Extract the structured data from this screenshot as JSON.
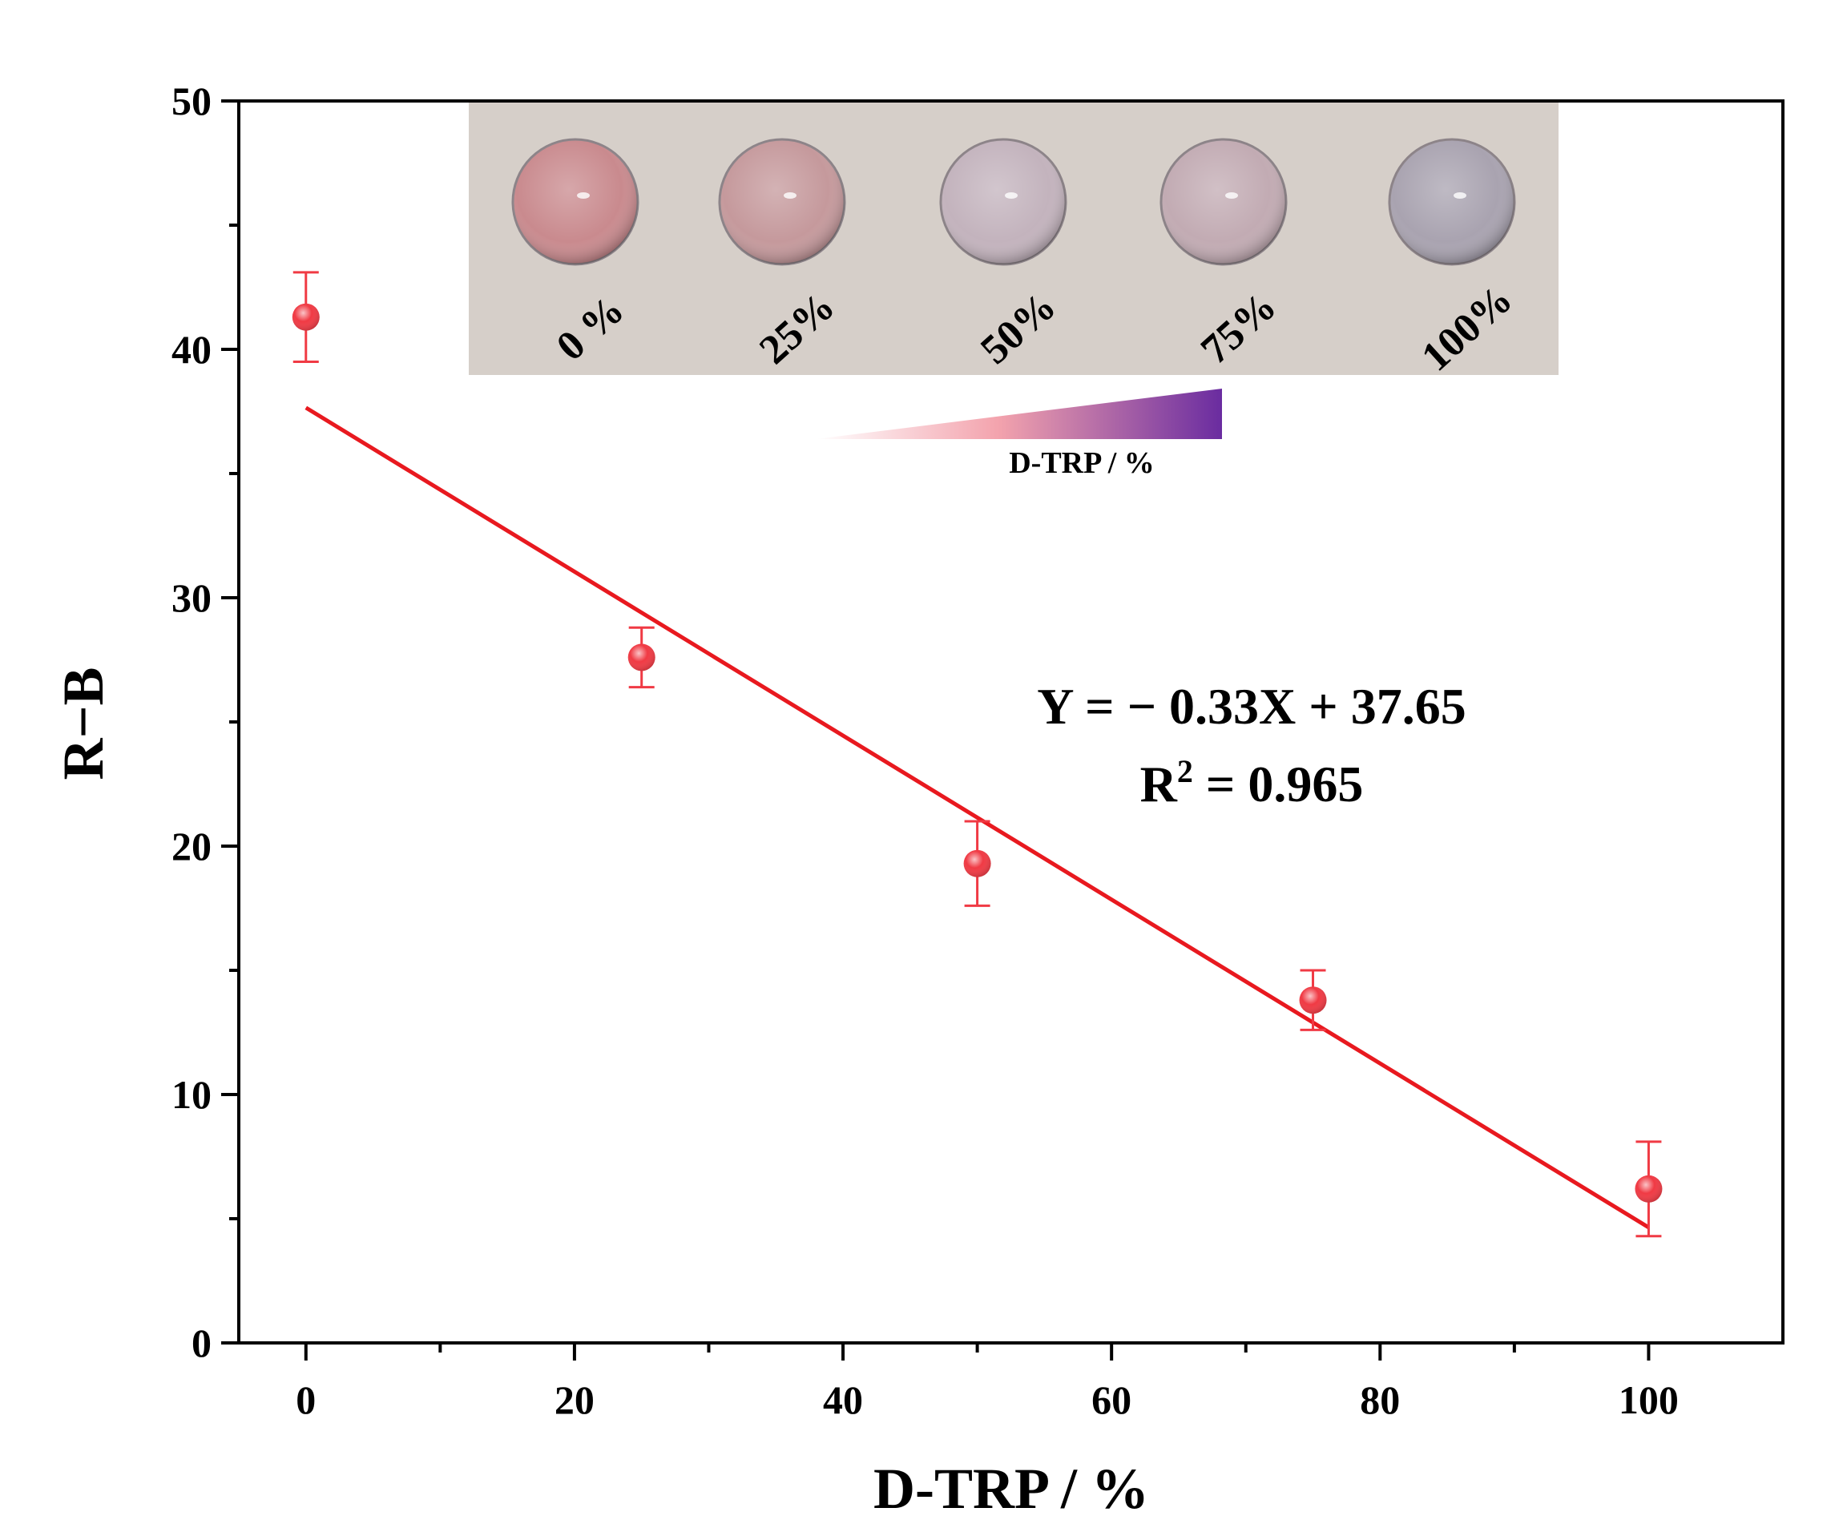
{
  "chart_data": {
    "type": "scatter",
    "title": "",
    "xlabel": "D-TRP / %",
    "ylabel": "R−B",
    "xlim": [
      -5,
      110
    ],
    "ylim": [
      0,
      50
    ],
    "x_ticks": [
      0,
      20,
      40,
      60,
      80,
      100
    ],
    "y_ticks": [
      0,
      10,
      20,
      30,
      40,
      50
    ],
    "series": [
      {
        "name": "R−B",
        "x": [
          0,
          25,
          50,
          75,
          100
        ],
        "y": [
          41.3,
          27.6,
          19.3,
          13.8,
          6.2
        ],
        "error": [
          1.8,
          1.2,
          1.7,
          1.2,
          1.9
        ]
      }
    ],
    "fit": {
      "slope": -0.33,
      "intercept": 37.65,
      "x_range": [
        0,
        100
      ],
      "equation": "Y = − 0.33X + 37.65",
      "r2_label": "R",
      "r2_sup": "2",
      "r2_value": " = 0.965"
    },
    "inset": {
      "well_labels": [
        "0 %",
        "25%",
        "50%",
        "75%",
        "100%"
      ],
      "gradient_label": "D-TRP / %"
    }
  },
  "colors": {
    "data": "#f03a44",
    "fit": "#e8191f",
    "axis": "#000000",
    "inset_bg": "#d6cfc9",
    "gradient_start": "#ffffff",
    "gradient_mid": "#f3a3ad",
    "gradient_end": "#6a2ca0",
    "wells": [
      "#c98a8e",
      "#c5999c",
      "#c3b3bd",
      "#c2abb3",
      "#a9a3b0"
    ]
  }
}
